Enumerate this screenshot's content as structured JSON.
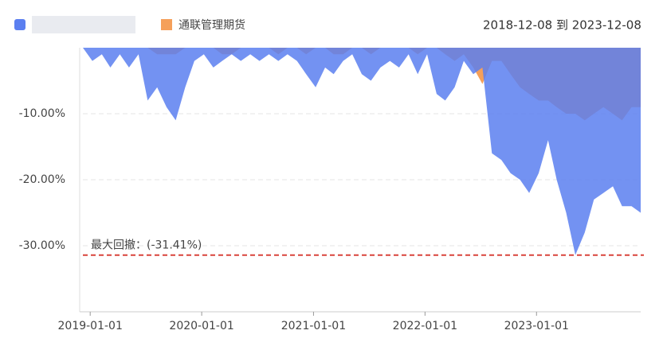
{
  "chart_data": {
    "type": "area",
    "date_range": "2018-12-08 到 2023-12-08",
    "x": [
      "2018-12-08",
      "2019-01-08",
      "2019-02-08",
      "2019-03-08",
      "2019-04-08",
      "2019-05-08",
      "2019-06-08",
      "2019-07-08",
      "2019-08-08",
      "2019-09-08",
      "2019-10-08",
      "2019-11-08",
      "2019-12-08",
      "2020-01-08",
      "2020-02-08",
      "2020-03-08",
      "2020-04-08",
      "2020-05-08",
      "2020-06-08",
      "2020-07-08",
      "2020-08-08",
      "2020-09-08",
      "2020-10-08",
      "2020-11-08",
      "2020-12-08",
      "2021-01-08",
      "2021-02-08",
      "2021-03-08",
      "2021-04-08",
      "2021-05-08",
      "2021-06-08",
      "2021-07-08",
      "2021-08-08",
      "2021-09-08",
      "2021-10-08",
      "2021-11-08",
      "2021-12-08",
      "2022-01-08",
      "2022-02-08",
      "2022-03-08",
      "2022-04-08",
      "2022-05-08",
      "2022-06-08",
      "2022-07-08",
      "2022-08-08",
      "2022-09-08",
      "2022-10-08",
      "2022-11-08",
      "2022-12-08",
      "2023-01-08",
      "2023-02-08",
      "2023-03-08",
      "2023-04-08",
      "2023-05-08",
      "2023-06-08",
      "2023-07-08",
      "2023-08-08",
      "2023-09-08",
      "2023-10-08",
      "2023-11-08",
      "2023-12-08"
    ],
    "series": [
      {
        "name": null,
        "color": "#5b7ff0",
        "values": [
          0,
          -2,
          -1,
          -3,
          -1,
          -3,
          -1,
          -8,
          -6,
          -9,
          -11,
          -6,
          -2,
          -1,
          -3,
          -2,
          -1,
          -2,
          -1,
          -2,
          -1,
          -2,
          -1,
          -2,
          -4,
          -6,
          -3,
          -4,
          -2,
          -1,
          -4,
          -5,
          -3,
          -2,
          -3,
          -1,
          -4,
          -1,
          -7,
          -8,
          -6,
          -2,
          -4,
          -3,
          -16,
          -17,
          -19,
          -20,
          -22,
          -19,
          -14,
          -20,
          -25,
          -31.41,
          -28,
          -23,
          -22,
          -21,
          -24,
          -24,
          -25
        ]
      },
      {
        "name": "通联管理期货",
        "color": "#f5a05a",
        "values": [
          0,
          0,
          0,
          0,
          0,
          0,
          0,
          0,
          -1,
          -1,
          -1,
          0,
          0,
          0,
          0,
          -1,
          -1,
          0,
          0,
          0,
          0,
          -1,
          0,
          0,
          -1,
          0,
          0,
          -1,
          -1,
          0,
          0,
          -1,
          0,
          0,
          0,
          0,
          -1,
          0,
          0,
          -1,
          -2,
          -1,
          -3,
          -5.5,
          -2,
          -2,
          -4,
          -6,
          -7,
          -8,
          -8,
          -9,
          -10,
          -10,
          -11,
          -10,
          -9,
          -10,
          -11,
          -9,
          -9
        ]
      }
    ],
    "xlim": [
      "2018-12-08",
      "2023-12-08"
    ],
    "xticks": [
      "2019-01-01",
      "2020-01-01",
      "2021-01-01",
      "2022-01-01",
      "2023-01-01"
    ],
    "ylim": [
      -40,
      0
    ],
    "yticks": [
      {
        "value": -10,
        "label": "-10.00%"
      },
      {
        "value": -20,
        "label": "-20.00%"
      },
      {
        "value": -30,
        "label": "-30.00%"
      }
    ],
    "grid": true,
    "max_drawdown": {
      "value": -31.41,
      "label": "最大回撤：(-31.41%)",
      "color": "#d9433b"
    }
  }
}
